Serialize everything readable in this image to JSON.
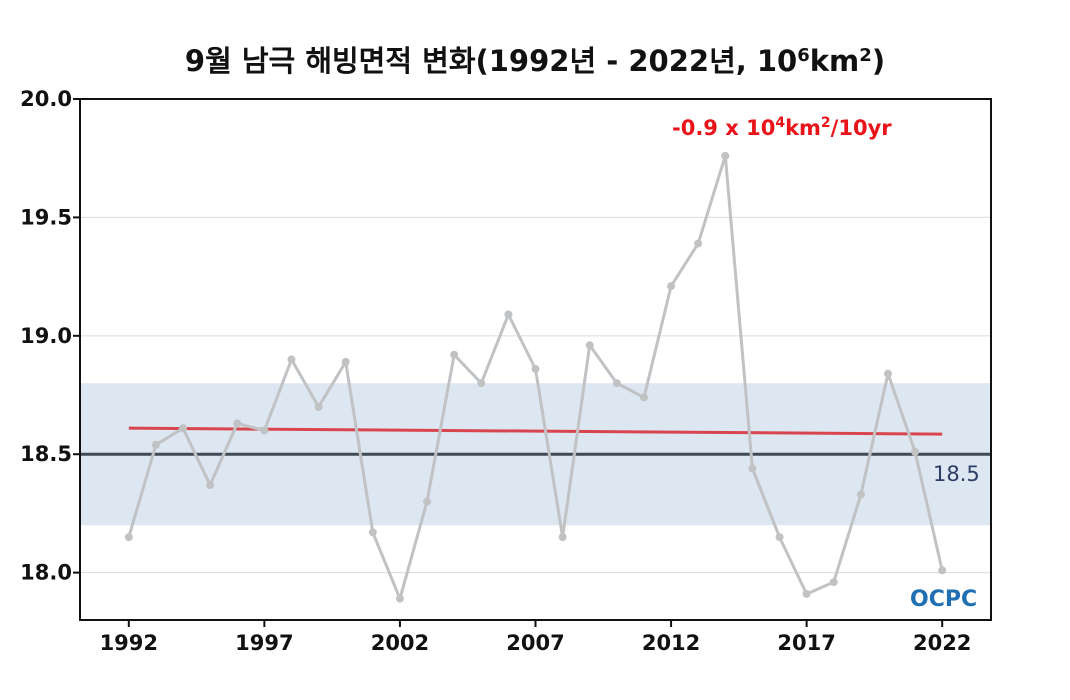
{
  "chart_data": {
    "type": "line",
    "title_parts": {
      "main": "9월 남극 해빙면적 변화(1992년 - 2022년, 10",
      "exp": "6",
      "unit": "km",
      "unit_exp": "2",
      "close": ")"
    },
    "x": [
      1992,
      1993,
      1994,
      1995,
      1996,
      1997,
      1998,
      1999,
      2000,
      2001,
      2002,
      2003,
      2004,
      2005,
      2006,
      2007,
      2008,
      2009,
      2010,
      2011,
      2012,
      2013,
      2014,
      2015,
      2016,
      2017,
      2018,
      2019,
      2020,
      2021,
      2022
    ],
    "series": [
      {
        "values": [
          18.15,
          18.54,
          18.61,
          18.37,
          18.63,
          18.6,
          18.9,
          18.7,
          18.89,
          18.17,
          17.89,
          18.3,
          18.92,
          18.8,
          19.09,
          18.86,
          18.15,
          18.96,
          18.8,
          18.74,
          19.21,
          19.39,
          19.76,
          18.44,
          18.15,
          17.91,
          17.96,
          18.33,
          18.84,
          18.51,
          18.01
        ],
        "color": "#c0c2c4"
      }
    ],
    "trend": {
      "start": 18.61,
      "end": 18.585,
      "color": "#d9454f",
      "label_parts": {
        "a": "-0.9 x 10",
        "exp": "4",
        "b": "km",
        "exp2": "2",
        "c": "/10yr"
      }
    },
    "reference_line": {
      "value": 18.5,
      "label": "18.5",
      "color": "#404a55"
    },
    "band": {
      "low": 18.2,
      "high": 18.8,
      "color": "#dde7f1"
    },
    "xticks": [
      "1992",
      "1997",
      "2002",
      "2007",
      "2012",
      "2017",
      "2022"
    ],
    "yticks": [
      "18.0",
      "18.5",
      "19.0",
      "19.5",
      "20.0"
    ],
    "xlim": [
      1990.2,
      2023.8
    ],
    "ylim": [
      17.8,
      20.0
    ],
    "grid": true,
    "logo": {
      "text": "OCPC",
      "color": "#1f6fb2"
    }
  }
}
